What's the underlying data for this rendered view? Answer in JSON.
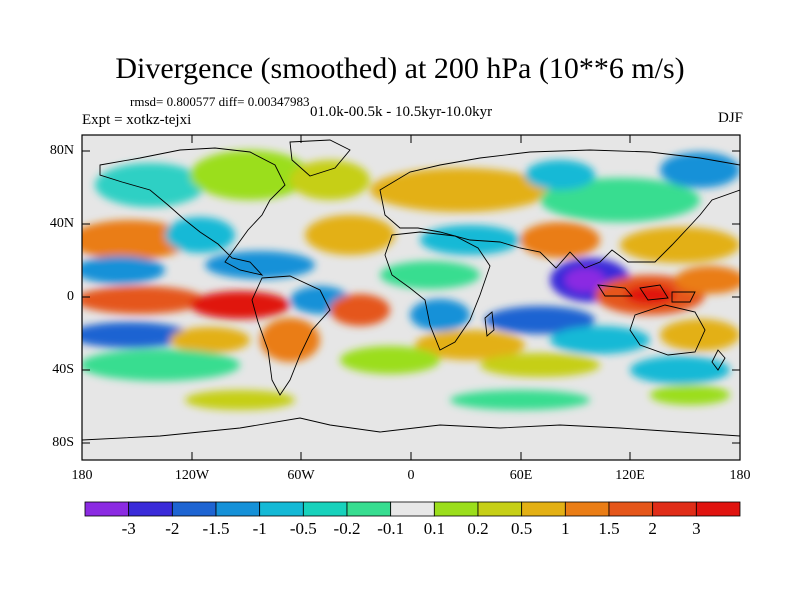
{
  "title": "Divergence (smoothed) at 200 hPa (10**6 m/s)",
  "stats": "rmsd= 0.800577 diff= 0.00347983",
  "experiment": "Expt = xotkz-tejxi",
  "period": "01.0k-00.5k - 10.5kyr-10.0kyr",
  "season": "DJF",
  "y_axis": {
    "ticks": [
      "80N",
      "40N",
      "0",
      "40S",
      "80S"
    ]
  },
  "x_axis": {
    "ticks": [
      "180",
      "120W",
      "60W",
      "0",
      "60E",
      "120E",
      "180"
    ]
  },
  "colorbar": {
    "labels": [
      "-3",
      "-2",
      "-1.5",
      "-1",
      "-0.5",
      "-0.2",
      "-0.1",
      "0.1",
      "0.2",
      "0.5",
      "1",
      "1.5",
      "2",
      "3"
    ],
    "colors": [
      "#8b2be2",
      "#3a2bd9",
      "#1e64d2",
      "#1591d8",
      "#14b9d6",
      "#17d2bc",
      "#37dd90",
      "#e8e8e8",
      "#9bde1b",
      "#c6cf16",
      "#e3b014",
      "#ea7d15",
      "#e5561a",
      "#e02d18",
      "#e0130f"
    ]
  }
}
